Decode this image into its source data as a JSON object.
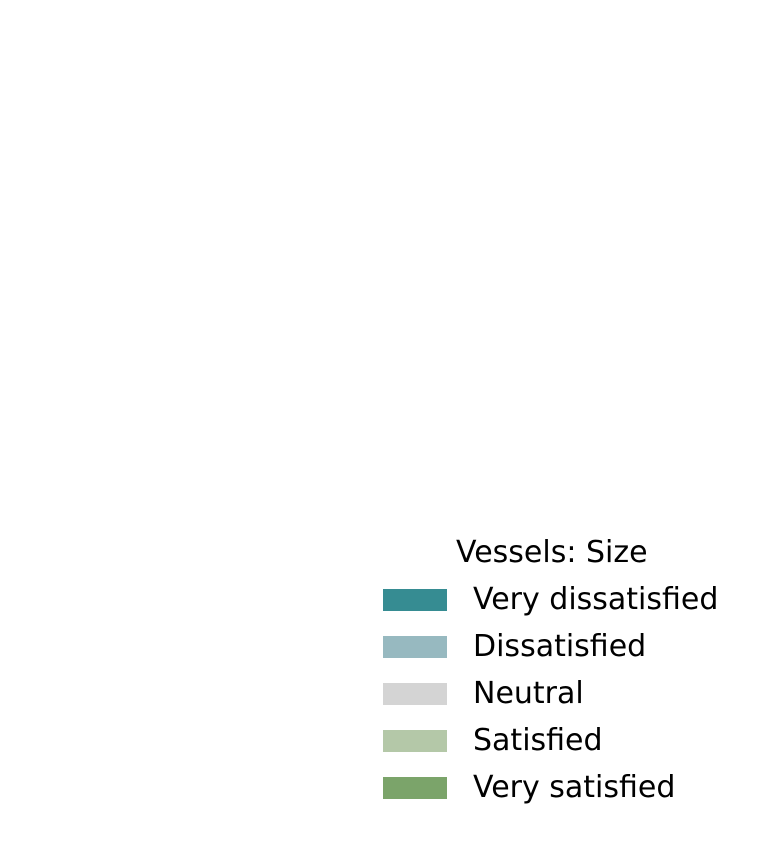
{
  "chart_data": {
    "type": "bar",
    "legend": {
      "title": "Vessels: Size",
      "placement": "bottom-right",
      "entries": [
        {
          "label": "Very dissatisfied",
          "color": "#368c92"
        },
        {
          "label": "Dissatisfied",
          "color": "#97b9c0"
        },
        {
          "label": "Neutral",
          "color": "#d4d4d4"
        },
        {
          "label": "Satisfied",
          "color": "#b4c8a8"
        },
        {
          "label": "Very satisfied",
          "color": "#7ba46a"
        }
      ]
    }
  }
}
